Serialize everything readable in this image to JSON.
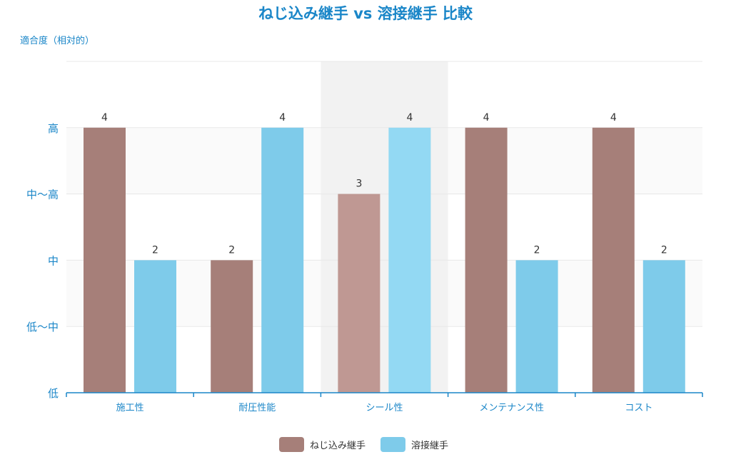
{
  "chart_data": {
    "type": "bar",
    "title": "ねじ込み継手 vs 溶接継手 比較",
    "ylabel": "適合度（相対的）",
    "categories": [
      "施工性",
      "耐圧性能",
      "シール性",
      "メンテナンス性",
      "コスト"
    ],
    "series": [
      {
        "name": "ねじ込み継手",
        "values": [
          4,
          2,
          3,
          4,
          4
        ]
      },
      {
        "name": "溶接継手",
        "values": [
          2,
          4,
          4,
          2,
          2
        ]
      }
    ],
    "yticks": [
      {
        "value": 0,
        "label": "低"
      },
      {
        "value": 1,
        "label": "低〜中"
      },
      {
        "value": 2,
        "label": "中"
      },
      {
        "value": 3,
        "label": "中〜高"
      },
      {
        "value": 4,
        "label": "高"
      }
    ],
    "ylim": [
      0,
      5
    ],
    "grid": true,
    "legend_position": "bottom",
    "highlighted_category": "シール性",
    "colors": {
      "series1": "#a67f79",
      "series2": "#7ecbea",
      "series1_highlight": "#bf9893",
      "series2_highlight": "#93d9f3",
      "accent": "#1a86c8",
      "axis": "#1a86c8",
      "grid": "#e8e8e8",
      "highlight_band": "#f2f2f2",
      "band_light": "#fafafa",
      "label": "#333333"
    }
  }
}
